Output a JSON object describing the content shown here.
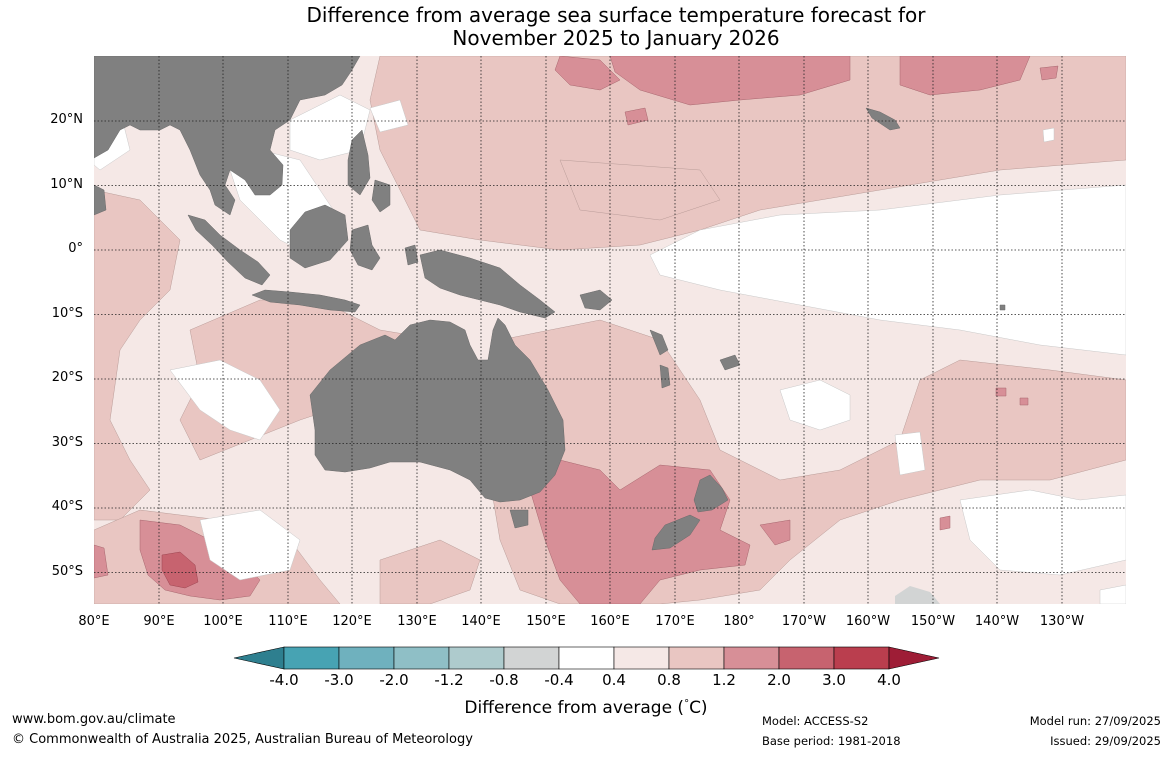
{
  "title": {
    "line1": "Difference from average sea surface temperature forecast for",
    "line2": "November 2025 to January 2026"
  },
  "lat_labels": [
    "20°N",
    "10°N",
    "0°",
    "10°S",
    "20°S",
    "30°S",
    "40°S",
    "50°S"
  ],
  "lon_labels": [
    "80°E",
    "90°E",
    "100°E",
    "110°E",
    "120°E",
    "130°E",
    "140°E",
    "150°E",
    "160°E",
    "170°E",
    "180°",
    "170°W",
    "160°W",
    "150°W",
    "140°W",
    "130°W"
  ],
  "colorbar": {
    "title": "Difference from average (°C)",
    "title_main": "Difference from average (",
    "title_unit": "C)",
    "title_degree": "°",
    "labels": [
      "-4.0",
      "-3.0",
      "-2.0",
      "-1.2",
      "-0.8",
      "-0.4",
      "0.4",
      "0.8",
      "1.2",
      "2.0",
      "3.0",
      "4.0"
    ],
    "colors": [
      "#2e7f8f",
      "#47a3b3",
      "#6fb1be",
      "#8fbfc6",
      "#aecbcd",
      "#d2d4d4",
      "#ffffff",
      "#f5e8e6",
      "#e9c6c2",
      "#d78f97",
      "#c7636f",
      "#ba3e4e",
      "#9e1d36"
    ]
  },
  "footer": {
    "url": "www.bom.gov.au/climate",
    "copyright": "© Commonwealth of Australia 2025, Australian Bureau of Meteorology",
    "model": "Model: ACCESS-S2",
    "base_period": "Base period: 1981-2018",
    "model_run": "Model run: 27/09/2025",
    "issued": "Issued: 29/09/2025"
  }
}
